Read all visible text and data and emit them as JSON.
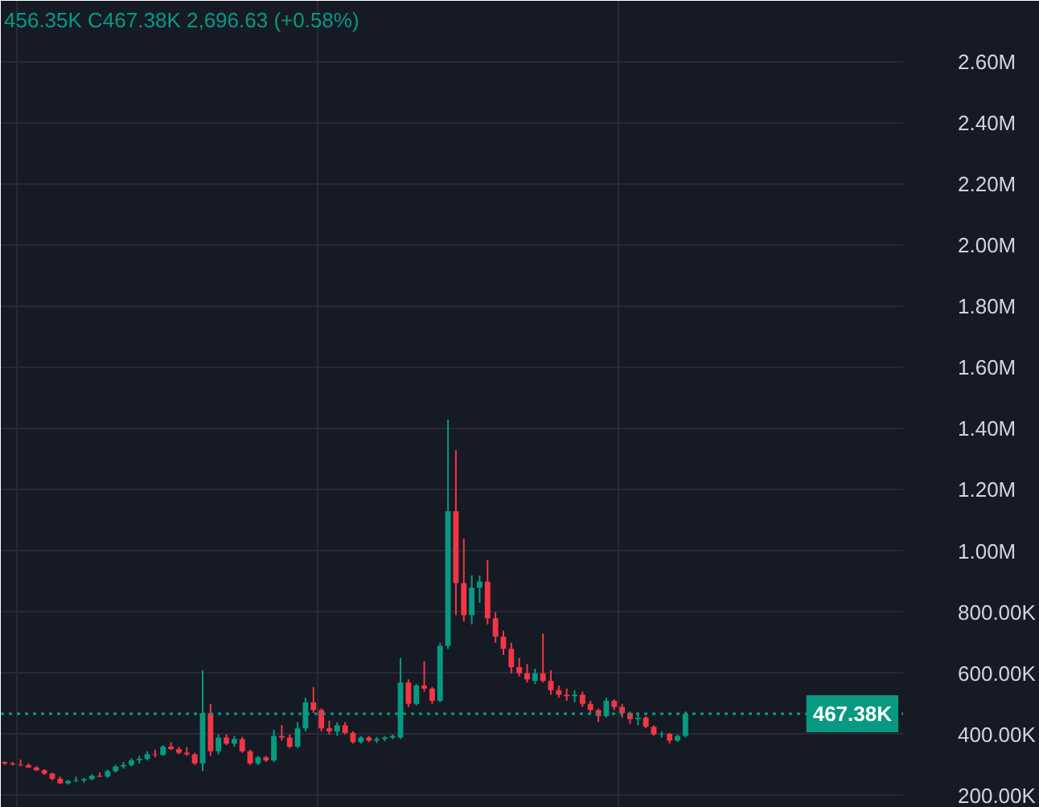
{
  "chart_data": {
    "type": "candlestick",
    "categories": [
      null,
      null,
      null,
      null,
      null,
      null,
      null,
      null,
      null,
      null,
      null,
      null,
      null,
      null,
      null,
      null,
      null,
      null,
      null,
      null,
      null,
      null,
      null,
      null,
      null,
      null,
      null,
      null,
      null,
      null,
      null,
      null,
      null,
      null,
      null,
      null,
      null,
      null,
      null,
      null,
      null,
      null,
      null,
      null,
      null,
      null,
      null,
      null,
      null,
      null,
      null,
      null,
      null,
      null,
      null,
      null,
      null,
      null,
      null,
      null,
      null,
      null,
      null,
      null,
      null,
      null,
      null,
      null,
      null,
      null,
      null,
      null,
      null,
      null,
      null,
      null,
      null,
      null,
      null,
      null,
      null,
      null,
      null,
      null,
      null,
      null,
      null,
      null,
      null,
      null,
      null,
      null,
      null,
      null,
      null,
      null,
      null,
      null,
      null,
      null,
      null,
      null,
      null,
      null,
      null,
      null,
      null,
      null,
      null,
      null,
      null,
      null,
      null,
      null
    ],
    "ohlc": [
      [
        310000,
        312000,
        300000,
        305000
      ],
      [
        305000,
        310000,
        298000,
        302000
      ],
      [
        302000,
        318000,
        296000,
        300000
      ],
      [
        300000,
        305000,
        290000,
        292000
      ],
      [
        292000,
        296000,
        280000,
        283000
      ],
      [
        283000,
        286000,
        268000,
        272000
      ],
      [
        272000,
        275000,
        250000,
        255000
      ],
      [
        255000,
        262000,
        238000,
        240000
      ],
      [
        240000,
        252000,
        236000,
        248000
      ],
      [
        248000,
        262000,
        244000,
        250000
      ],
      [
        250000,
        258000,
        242000,
        254000
      ],
      [
        254000,
        270000,
        250000,
        265000
      ],
      [
        265000,
        275000,
        260000,
        262000
      ],
      [
        262000,
        285000,
        258000,
        280000
      ],
      [
        280000,
        300000,
        275000,
        295000
      ],
      [
        295000,
        310000,
        288000,
        300000
      ],
      [
        300000,
        322000,
        295000,
        315000
      ],
      [
        315000,
        330000,
        305000,
        320000
      ],
      [
        320000,
        345000,
        315000,
        335000
      ],
      [
        335000,
        350000,
        325000,
        333000
      ],
      [
        333000,
        365000,
        330000,
        360000
      ],
      [
        360000,
        375000,
        350000,
        352000
      ],
      [
        352000,
        360000,
        335000,
        340000
      ],
      [
        340000,
        358000,
        330000,
        335000
      ],
      [
        335000,
        340000,
        300000,
        305000
      ],
      [
        305000,
        610000,
        280000,
        470000
      ],
      [
        470000,
        500000,
        330000,
        345000
      ],
      [
        345000,
        400000,
        335000,
        390000
      ],
      [
        390000,
        400000,
        365000,
        370000
      ],
      [
        370000,
        395000,
        360000,
        385000
      ],
      [
        385000,
        392000,
        340000,
        345000
      ],
      [
        345000,
        350000,
        300000,
        305000
      ],
      [
        305000,
        330000,
        300000,
        325000
      ],
      [
        325000,
        330000,
        310000,
        315000
      ],
      [
        315000,
        415000,
        310000,
        395000
      ],
      [
        395000,
        430000,
        380000,
        390000
      ],
      [
        390000,
        400000,
        355000,
        360000
      ],
      [
        360000,
        440000,
        355000,
        420000
      ],
      [
        420000,
        520000,
        410000,
        505000
      ],
      [
        505000,
        555000,
        470000,
        480000
      ],
      [
        480000,
        485000,
        410000,
        420000
      ],
      [
        420000,
        445000,
        400000,
        410000
      ],
      [
        410000,
        440000,
        395000,
        430000
      ],
      [
        430000,
        440000,
        400000,
        405000
      ],
      [
        405000,
        410000,
        370000,
        375000
      ],
      [
        375000,
        395000,
        370000,
        390000
      ],
      [
        390000,
        395000,
        375000,
        380000
      ],
      [
        380000,
        392000,
        372000,
        385000
      ],
      [
        385000,
        395000,
        378000,
        390000
      ],
      [
        390000,
        400000,
        385000,
        395000
      ],
      [
        390000,
        650000,
        385000,
        570000
      ],
      [
        570000,
        580000,
        490000,
        500000
      ],
      [
        500000,
        565000,
        495000,
        560000
      ],
      [
        560000,
        640000,
        540000,
        550000
      ],
      [
        550000,
        555000,
        500000,
        510000
      ],
      [
        510000,
        700000,
        505000,
        690000
      ],
      [
        690000,
        1430000,
        680000,
        1130000
      ],
      [
        1130000,
        1330000,
        790000,
        895000
      ],
      [
        895000,
        1040000,
        770000,
        790000
      ],
      [
        790000,
        920000,
        760000,
        880000
      ],
      [
        880000,
        920000,
        830000,
        900000
      ],
      [
        900000,
        970000,
        760000,
        780000
      ],
      [
        780000,
        800000,
        700000,
        720000
      ],
      [
        720000,
        740000,
        660000,
        680000
      ],
      [
        680000,
        700000,
        600000,
        620000
      ],
      [
        620000,
        650000,
        590000,
        600000
      ],
      [
        600000,
        630000,
        570000,
        580000
      ],
      [
        575000,
        615000,
        565000,
        600000
      ],
      [
        600000,
        730000,
        570000,
        575000
      ],
      [
        575000,
        610000,
        530000,
        545000
      ],
      [
        545000,
        560000,
        520000,
        530000
      ],
      [
        530000,
        550000,
        510000,
        525000
      ],
      [
        525000,
        545000,
        505000,
        530000
      ],
      [
        530000,
        540000,
        490000,
        500000
      ],
      [
        500000,
        510000,
        470000,
        480000
      ],
      [
        480000,
        485000,
        440000,
        460000
      ],
      [
        460000,
        520000,
        455000,
        510000
      ],
      [
        510000,
        515000,
        480000,
        490000
      ],
      [
        490000,
        500000,
        455000,
        470000
      ],
      [
        470000,
        475000,
        435000,
        450000
      ],
      [
        450000,
        470000,
        430000,
        455000
      ],
      [
        455000,
        460000,
        420000,
        425000
      ],
      [
        425000,
        430000,
        395000,
        400000
      ],
      [
        400000,
        410000,
        390000,
        402000
      ],
      [
        402000,
        405000,
        370000,
        380000
      ],
      [
        380000,
        400000,
        375000,
        395000
      ],
      [
        395000,
        475000,
        390000,
        467380
      ],
      null,
      null,
      null,
      null,
      null,
      null,
      null,
      null,
      null,
      null,
      null,
      null,
      null,
      null,
      null,
      null,
      null,
      null,
      null,
      null,
      null,
      null,
      null,
      null,
      null,
      null,
      null
    ],
    "colors": [
      "#f23645",
      "#f23645",
      "#f23645",
      "#f23645",
      "#f23645",
      "#f23645",
      "#f23645",
      "#f23645",
      "#089981",
      "#089981",
      "#089981",
      "#089981",
      "#f23645",
      "#089981",
      "#089981",
      "#089981",
      "#089981",
      "#089981",
      "#089981",
      "#f23645",
      "#089981",
      "#f23645",
      "#f23645",
      "#f23645",
      "#f23645",
      "#089981",
      "#f23645",
      "#089981",
      "#f23645",
      "#089981",
      "#f23645",
      "#f23645",
      "#089981",
      "#f23645",
      "#089981",
      "#f23645",
      "#f23645",
      "#089981",
      "#089981",
      "#f23645",
      "#f23645",
      "#f23645",
      "#089981",
      "#f23645",
      "#f23645",
      "#089981",
      "#f23645",
      "#089981",
      "#089981",
      "#089981",
      "#089981",
      "#f23645",
      "#089981",
      "#f23645",
      "#f23645",
      "#089981",
      "#089981",
      "#f23645",
      "#f23645",
      "#089981",
      "#089981",
      "#f23645",
      "#f23645",
      "#f23645",
      "#f23645",
      "#f23645",
      "#f23645",
      "#089981",
      "#f23645",
      "#f23645",
      "#f23645",
      "#f23645",
      "#089981",
      "#f23645",
      "#f23645",
      "#f23645",
      "#089981",
      "#f23645",
      "#f23645",
      "#f23645",
      "#089981",
      "#f23645",
      "#f23645",
      "#089981",
      "#f23645",
      "#089981",
      "#089981",
      null,
      null,
      null,
      null,
      null,
      null,
      null,
      null,
      null,
      null,
      null,
      null,
      null,
      null,
      null,
      null,
      null,
      null,
      null,
      null,
      null,
      null,
      null,
      null,
      null,
      null,
      null
    ],
    "ylim": [
      160000,
      2800000
    ],
    "yticks": [
      {
        "value": 200000,
        "label": "200.00K"
      },
      {
        "value": 400000,
        "label": "400.00K"
      },
      {
        "value": 600000,
        "label": "600.00K"
      },
      {
        "value": 800000,
        "label": "800.00K"
      },
      {
        "value": 1000000,
        "label": "1.00M"
      },
      {
        "value": 1200000,
        "label": "1.20M"
      },
      {
        "value": 1400000,
        "label": "1.40M"
      },
      {
        "value": 1600000,
        "label": "1.60M"
      },
      {
        "value": 1800000,
        "label": "1.80M"
      },
      {
        "value": 2000000,
        "label": "2.00M"
      },
      {
        "value": 2200000,
        "label": "2.20M"
      },
      {
        "value": 2400000,
        "label": "2.40M"
      },
      {
        "value": 2600000,
        "label": "2.60M"
      }
    ],
    "ref_lines": [
      {
        "axis": "y",
        "value": 467380,
        "label": "467.38K",
        "color": "#089981",
        "line_style": "dotted"
      }
    ],
    "annotations": [
      "456.35K C467.38K 2,696.63 (+0.58%)"
    ],
    "grid": true,
    "tick_labels": "y"
  }
}
